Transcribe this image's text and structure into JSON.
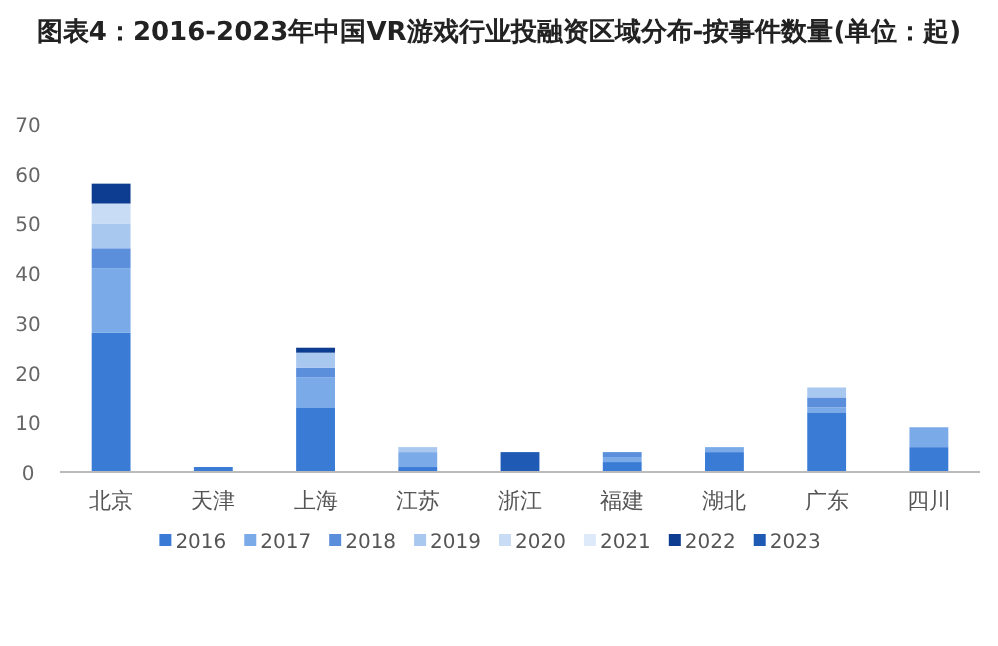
{
  "chart_data": {
    "type": "bar",
    "stacked": true,
    "title": "图表4：2016-2023年中国VR游戏行业投融资区域分布-按事件数量(单位：起)",
    "categories": [
      "北京",
      "天津",
      "上海",
      "江苏",
      "浙江",
      "福建",
      "湖北",
      "广东",
      "四川"
    ],
    "series": [
      {
        "name": "2016",
        "color": "#3a7bd5",
        "values": [
          28,
          1,
          13,
          1,
          0,
          2,
          4,
          12,
          5
        ]
      },
      {
        "name": "2017",
        "color": "#7aaae8",
        "values": [
          13,
          0,
          6,
          3,
          0,
          1,
          1,
          1,
          4
        ]
      },
      {
        "name": "2018",
        "color": "#5b8fdc",
        "values": [
          4,
          0,
          2,
          0,
          0,
          1,
          0,
          2,
          0
        ]
      },
      {
        "name": "2019",
        "color": "#a9c8ef",
        "values": [
          5,
          0,
          3,
          1,
          0,
          0,
          0,
          2,
          0
        ]
      },
      {
        "name": "2020",
        "color": "#c9dcf5",
        "values": [
          4,
          0,
          0,
          0,
          0,
          0,
          0,
          0,
          0
        ]
      },
      {
        "name": "2021",
        "color": "#deeafa",
        "values": [
          0,
          0,
          0,
          0,
          0,
          0,
          0,
          0,
          0
        ]
      },
      {
        "name": "2022",
        "color": "#0d3d91",
        "values": [
          4,
          0,
          1,
          0,
          0,
          0,
          0,
          0,
          0
        ]
      },
      {
        "name": "2023",
        "color": "#1f5bb5",
        "values": [
          0,
          0,
          0,
          0,
          4,
          0,
          0,
          0,
          0
        ]
      }
    ],
    "ylim": [
      0,
      70
    ],
    "yticks": [
      0,
      10,
      20,
      30,
      40,
      50,
      60,
      70
    ],
    "grid": false,
    "legend": "bottom"
  }
}
